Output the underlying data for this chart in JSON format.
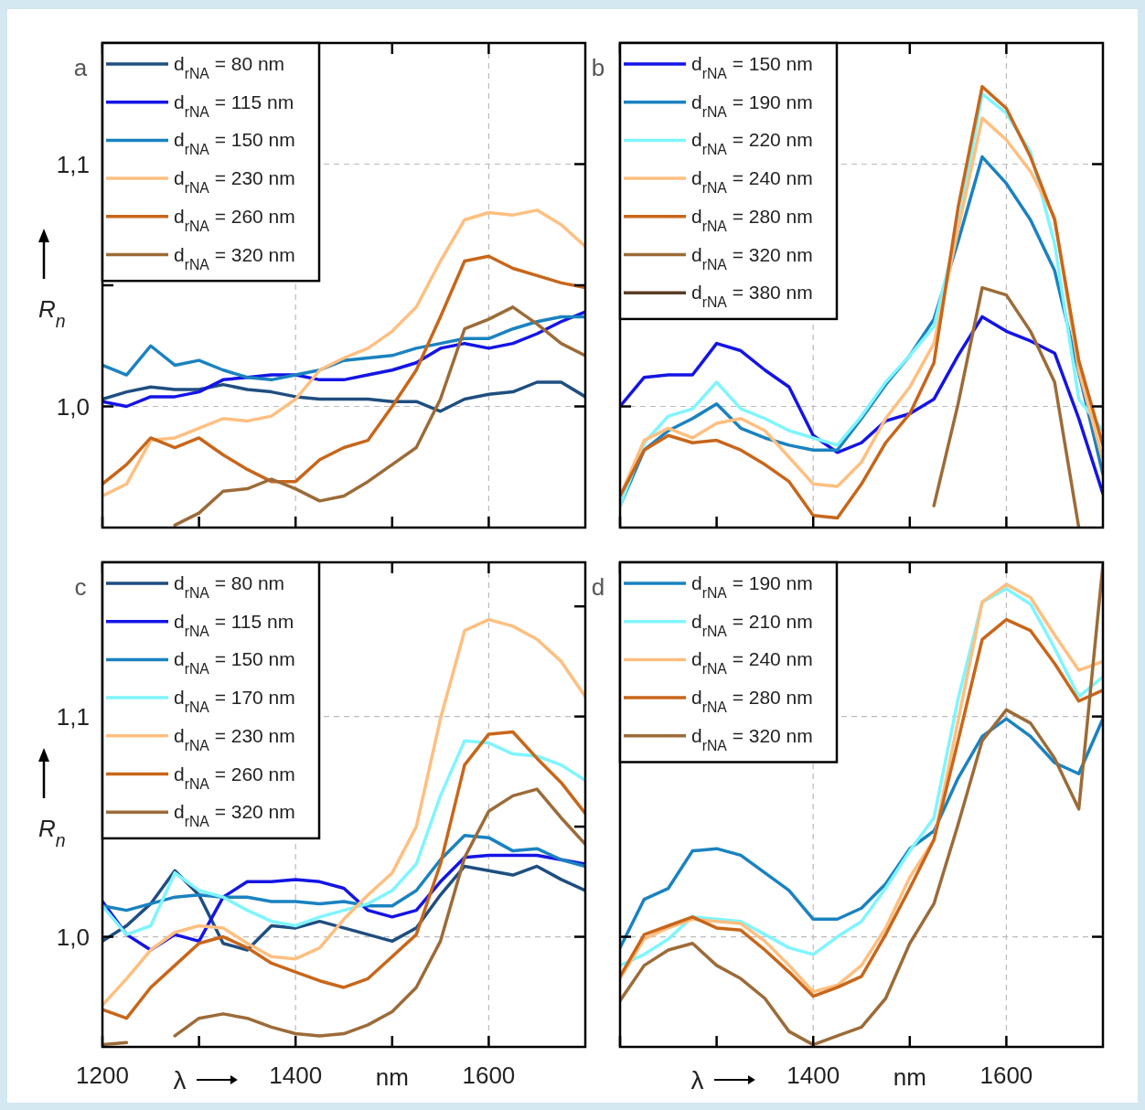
{
  "chart_data": [
    {
      "type": "line",
      "title": "a",
      "ylabel": "R$_{n}$",
      "xlim": [
        1200,
        1700
      ],
      "ylim": [
        0.95,
        1.15
      ],
      "xticks": [
        1200,
        {
          "value": 1300,
          "label": null
        },
        1400,
        {
          "value": 1500,
          "label": null
        },
        1600
      ],
      "yticks": [
        {
          "value": 1.0,
          "label": "1,0"
        },
        {
          "value": 1.05,
          "label": null
        },
        {
          "value": 1.1,
          "label": "1,1"
        }
      ],
      "grid": true,
      "legend": "top left",
      "tick_labels": "y",
      "x": [
        1200,
        1225,
        1250,
        1275,
        1300,
        1325,
        1350,
        1375,
        1400,
        1425,
        1450,
        1475,
        1500,
        1525,
        1550,
        1575,
        1600,
        1625,
        1650,
        1675,
        1700
      ],
      "series": [
        {
          "name": "d$_{rNA}$ = 80 nm",
          "color": "#1f4e80",
          "values": [
            1.003,
            1.006,
            1.008,
            1.007,
            1.007,
            1.009,
            1.007,
            1.006,
            1.004,
            1.003,
            1.003,
            1.003,
            1.002,
            1.002,
            0.998,
            1.003,
            1.005,
            1.006,
            1.01,
            1.01,
            1.004
          ]
        },
        {
          "name": "d$_{rNA}$ = 115 nm",
          "color": "#1414e6",
          "values": [
            1.002,
            1.0,
            1.004,
            1.004,
            1.006,
            1.011,
            1.012,
            1.013,
            1.013,
            1.011,
            1.011,
            1.013,
            1.015,
            1.018,
            1.024,
            1.026,
            1.024,
            1.026,
            1.03,
            1.035,
            1.039
          ]
        },
        {
          "name": "d$_{rNA}$ = 150 nm",
          "color": "#1a82c0",
          "values": [
            1.017,
            1.013,
            1.025,
            1.017,
            1.019,
            1.015,
            1.012,
            1.011,
            1.013,
            1.015,
            1.019,
            1.02,
            1.021,
            1.024,
            1.026,
            1.028,
            1.028,
            1.032,
            1.035,
            1.037,
            1.037
          ]
        },
        {
          "name": "d$_{rNA}$ = 230 nm",
          "color": "#ffbf80",
          "values": [
            0.963,
            0.968,
            0.986,
            0.987,
            0.991,
            0.995,
            0.994,
            0.996,
            1.003,
            1.015,
            1.02,
            1.024,
            1.031,
            1.041,
            1.06,
            1.077,
            1.08,
            1.079,
            1.081,
            1.075,
            1.066
          ]
        },
        {
          "name": "d$_{rNA}$ = 260 nm",
          "color": "#c8661a",
          "values": [
            0.968,
            0.976,
            0.987,
            0.983,
            0.987,
            0.98,
            0.974,
            0.969,
            0.969,
            0.978,
            0.983,
            0.986,
            1.0,
            1.015,
            1.037,
            1.06,
            1.062,
            1.057,
            1.054,
            1.051,
            1.049
          ]
        },
        {
          "name": "d$_{rNA}$ = 320 nm",
          "color": "#9c6b38",
          "values": [
            null,
            null,
            null,
            0.951,
            0.956,
            0.965,
            0.966,
            0.97,
            0.966,
            0.961,
            0.963,
            0.969,
            0.976,
            0.983,
            1.003,
            1.032,
            1.036,
            1.041,
            1.034,
            1.026,
            1.021
          ]
        }
      ]
    },
    {
      "type": "line",
      "title": "b",
      "xlim": [
        1200,
        1700
      ],
      "ylim": [
        0.95,
        1.15
      ],
      "xticks": [
        1200,
        {
          "value": 1300,
          "label": null
        },
        1400,
        {
          "value": 1500,
          "label": null
        },
        1600
      ],
      "yticks": [
        {
          "value": 1.0,
          "label": null
        },
        {
          "value": 1.1,
          "label": null
        }
      ],
      "grid": true,
      "legend": "top left",
      "tick_labels": false,
      "x": [
        1200,
        1225,
        1250,
        1275,
        1300,
        1325,
        1350,
        1375,
        1400,
        1425,
        1450,
        1475,
        1500,
        1525,
        1550,
        1575,
        1600,
        1625,
        1650,
        1675,
        1700
      ],
      "series": [
        {
          "name": "d$_{rNA}$ = 150 nm",
          "color": "#1414e6",
          "values": [
            1.0,
            1.012,
            1.013,
            1.013,
            1.026,
            1.023,
            1.015,
            1.008,
            0.988,
            0.981,
            0.985,
            0.994,
            0.997,
            1.003,
            1.021,
            1.037,
            1.031,
            1.027,
            1.022,
            0.995,
            0.964
          ]
        },
        {
          "name": "d$_{rNA}$ = 190 nm",
          "color": "#1a82c0",
          "values": [
            0.959,
            0.982,
            0.99,
            0.995,
            1.001,
            0.991,
            0.987,
            0.984,
            0.982,
            0.982,
            0.995,
            1.009,
            1.021,
            1.036,
            1.068,
            1.103,
            1.092,
            1.077,
            1.056,
            1.014,
            0.972
          ]
        },
        {
          "name": "d$_{rNA}$ = 220 nm",
          "color": "#7ff5ff",
          "values": [
            0.959,
            0.985,
            0.996,
            0.999,
            1.01,
            0.999,
            0.995,
            0.99,
            0.987,
            0.984,
            0.996,
            1.01,
            1.021,
            1.033,
            1.074,
            1.129,
            1.121,
            1.105,
            1.067,
            1.003,
            0.99
          ]
        },
        {
          "name": "d$_{rNA}$ = 240 nm",
          "color": "#ffbf80",
          "values": [
            0.963,
            0.986,
            0.991,
            0.987,
            0.993,
            0.995,
            0.99,
            0.979,
            0.968,
            0.967,
            0.977,
            0.995,
            1.008,
            1.026,
            1.073,
            1.119,
            1.11,
            1.097,
            1.078,
            1.015,
            0.978
          ]
        },
        {
          "name": "d$_{rNA}$ = 280 nm",
          "color": "#c8661a",
          "values": [
            0.963,
            0.982,
            0.988,
            0.985,
            0.986,
            0.982,
            0.976,
            0.969,
            0.955,
            0.954,
            0.968,
            0.985,
            0.997,
            1.018,
            1.082,
            1.132,
            1.123,
            1.103,
            1.077,
            1.019,
            0.984
          ]
        },
        {
          "name": "d$_{rNA}$ = 320 nm",
          "color": "#9c6b38",
          "values": [
            null,
            null,
            null,
            null,
            null,
            null,
            null,
            null,
            null,
            null,
            null,
            null,
            null,
            0.959,
            1.001,
            1.049,
            1.046,
            1.031,
            1.01,
            0.95,
            null
          ]
        },
        {
          "name": "d$_{rNA}$ = 380 nm",
          "color": "#5a3d24",
          "values": [
            null,
            null,
            null,
            null,
            null,
            null,
            null,
            null,
            null,
            null,
            null,
            null,
            null,
            null,
            null,
            null,
            null,
            null,
            null,
            null,
            null
          ]
        }
      ]
    },
    {
      "type": "line",
      "title": "c",
      "ylabel": "R$_{n}$",
      "xlabel": "λ",
      "annotations": [
        "nm"
      ],
      "xlim": [
        1200,
        1700
      ],
      "ylim": [
        0.95,
        1.17
      ],
      "xticks": [
        1200,
        {
          "value": 1300,
          "label": null
        },
        1400,
        {
          "value": 1500,
          "label": null
        },
        1600
      ],
      "yticks": [
        {
          "value": 1.0,
          "label": "1,0"
        },
        {
          "value": 1.05,
          "label": null
        },
        {
          "value": 1.1,
          "label": "1,1"
        },
        {
          "value": 1.15,
          "label": null
        }
      ],
      "grid": true,
      "legend": "top left",
      "x": [
        1200,
        1225,
        1250,
        1275,
        1300,
        1325,
        1350,
        1375,
        1400,
        1425,
        1450,
        1475,
        1500,
        1525,
        1550,
        1575,
        1600,
        1625,
        1650,
        1675,
        1700
      ],
      "series": [
        {
          "name": "d$_{rNA}$ = 80 nm",
          "color": "#1f4e80",
          "values": [
            0.998,
            1.005,
            1.015,
            1.03,
            1.019,
            0.997,
            0.994,
            1.005,
            1.004,
            1.007,
            1.004,
            1.001,
            0.998,
            1.004,
            1.019,
            1.032,
            1.03,
            1.028,
            1.032,
            1.026,
            1.021
          ]
        },
        {
          "name": "d$_{rNA}$ = 115 nm",
          "color": "#1414e6",
          "values": [
            1.016,
            1.001,
            0.994,
            1.001,
            0.998,
            1.018,
            1.025,
            1.025,
            1.026,
            1.025,
            1.022,
            1.012,
            1.009,
            1.012,
            1.025,
            1.036,
            1.037,
            1.037,
            1.037,
            1.035,
            1.033
          ]
        },
        {
          "name": "d$_{rNA}$ = 150 nm",
          "color": "#1a82c0",
          "values": [
            1.014,
            1.012,
            1.015,
            1.018,
            1.019,
            1.018,
            1.018,
            1.016,
            1.016,
            1.015,
            1.016,
            1.014,
            1.014,
            1.021,
            1.035,
            1.046,
            1.045,
            1.039,
            1.04,
            1.035,
            1.032
          ]
        },
        {
          "name": "d$_{rNA}$ = 170 nm",
          "color": "#7ff5ff",
          "values": [
            1.014,
            1.001,
            1.005,
            1.029,
            1.021,
            1.018,
            1.012,
            1.007,
            1.005,
            1.009,
            1.012,
            1.015,
            1.021,
            1.033,
            1.064,
            1.089,
            1.088,
            1.083,
            1.082,
            1.078,
            1.071
          ]
        },
        {
          "name": "d$_{rNA}$ = 230 nm",
          "color": "#ffbf80",
          "values": [
            0.969,
            0.981,
            0.994,
            1.002,
            1.005,
            1.004,
            0.997,
            0.991,
            0.99,
            0.995,
            1.008,
            1.019,
            1.029,
            1.05,
            1.099,
            1.139,
            1.144,
            1.141,
            1.135,
            1.125,
            1.109
          ]
        },
        {
          "name": "d$_{rNA}$ = 260 nm",
          "color": "#c8661a",
          "values": [
            0.967,
            0.963,
            0.977,
            0.987,
            0.997,
            1.0,
            0.995,
            0.988,
            0.984,
            0.98,
            0.977,
            0.981,
            0.991,
            1.001,
            1.033,
            1.078,
            1.092,
            1.093,
            1.081,
            1.07,
            1.056
          ]
        },
        {
          "name": "d$_{rNA}$ = 320 nm",
          "color": "#9c6b38",
          "values": [
            0.951,
            0.952,
            null,
            0.955,
            0.963,
            0.965,
            0.963,
            0.959,
            0.956,
            0.955,
            0.956,
            0.96,
            0.966,
            0.977,
            0.998,
            1.036,
            1.057,
            1.064,
            1.067,
            1.054,
            1.042
          ]
        }
      ]
    },
    {
      "type": "line",
      "title": "d",
      "xlabel": "λ",
      "annotations": [
        "nm"
      ],
      "xlim": [
        1200,
        1700
      ],
      "ylim": [
        0.95,
        1.17
      ],
      "xticks": [
        {
          "value": 1200,
          "label": null
        },
        {
          "value": 1300,
          "label": null
        },
        1400,
        {
          "value": 1500,
          "label": null
        },
        1600
      ],
      "yticks": [
        {
          "value": 1.0,
          "label": null
        },
        {
          "value": 1.1,
          "label": null
        }
      ],
      "grid": true,
      "legend": "top left",
      "tick_labels": "x",
      "x": [
        1200,
        1225,
        1250,
        1275,
        1300,
        1325,
        1350,
        1375,
        1400,
        1425,
        1450,
        1475,
        1500,
        1525,
        1550,
        1575,
        1600,
        1625,
        1650,
        1675,
        1700
      ],
      "series": [
        {
          "name": "d$_{rNA}$ = 190 nm",
          "color": "#1a82c0",
          "values": [
            0.995,
            1.017,
            1.022,
            1.039,
            1.04,
            1.037,
            1.029,
            1.021,
            1.008,
            1.008,
            1.013,
            1.024,
            1.04,
            1.048,
            1.072,
            1.091,
            1.099,
            1.091,
            1.079,
            1.074,
            1.099
          ]
        },
        {
          "name": "d$_{rNA}$ = 210 nm",
          "color": "#7ff5ff",
          "values": [
            0.987,
            0.992,
            0.999,
            1.009,
            1.008,
            1.007,
            1.001,
            0.995,
            0.992,
            1.0,
            1.007,
            1.022,
            1.039,
            1.054,
            1.108,
            1.152,
            1.158,
            1.151,
            1.131,
            1.109,
            1.118
          ]
        },
        {
          "name": "d$_{rNA}$ = 240 nm",
          "color": "#ffbf80",
          "values": [
            0.981,
            0.999,
            1.004,
            1.008,
            1.007,
            1.006,
            0.998,
            0.987,
            0.975,
            0.978,
            0.987,
            1.004,
            1.027,
            1.044,
            1.098,
            1.152,
            1.16,
            1.154,
            1.137,
            1.121,
            1.125
          ]
        },
        {
          "name": "d$_{rNA}$ = 280 nm",
          "color": "#c8661a",
          "values": [
            0.982,
            1.001,
            1.005,
            1.009,
            1.004,
            1.003,
            0.994,
            0.984,
            0.973,
            0.977,
            0.982,
            1.001,
            1.022,
            1.044,
            1.089,
            1.135,
            1.144,
            1.139,
            1.124,
            1.107,
            1.112
          ]
        },
        {
          "name": "d$_{rNA}$ = 320 nm",
          "color": "#9c6b38",
          "values": [
            0.971,
            0.987,
            0.994,
            0.997,
            0.987,
            0.981,
            0.972,
            0.957,
            0.951,
            0.955,
            0.959,
            0.972,
            0.997,
            1.015,
            1.051,
            1.089,
            1.103,
            1.097,
            1.081,
            1.058,
            1.169
          ]
        }
      ]
    }
  ]
}
